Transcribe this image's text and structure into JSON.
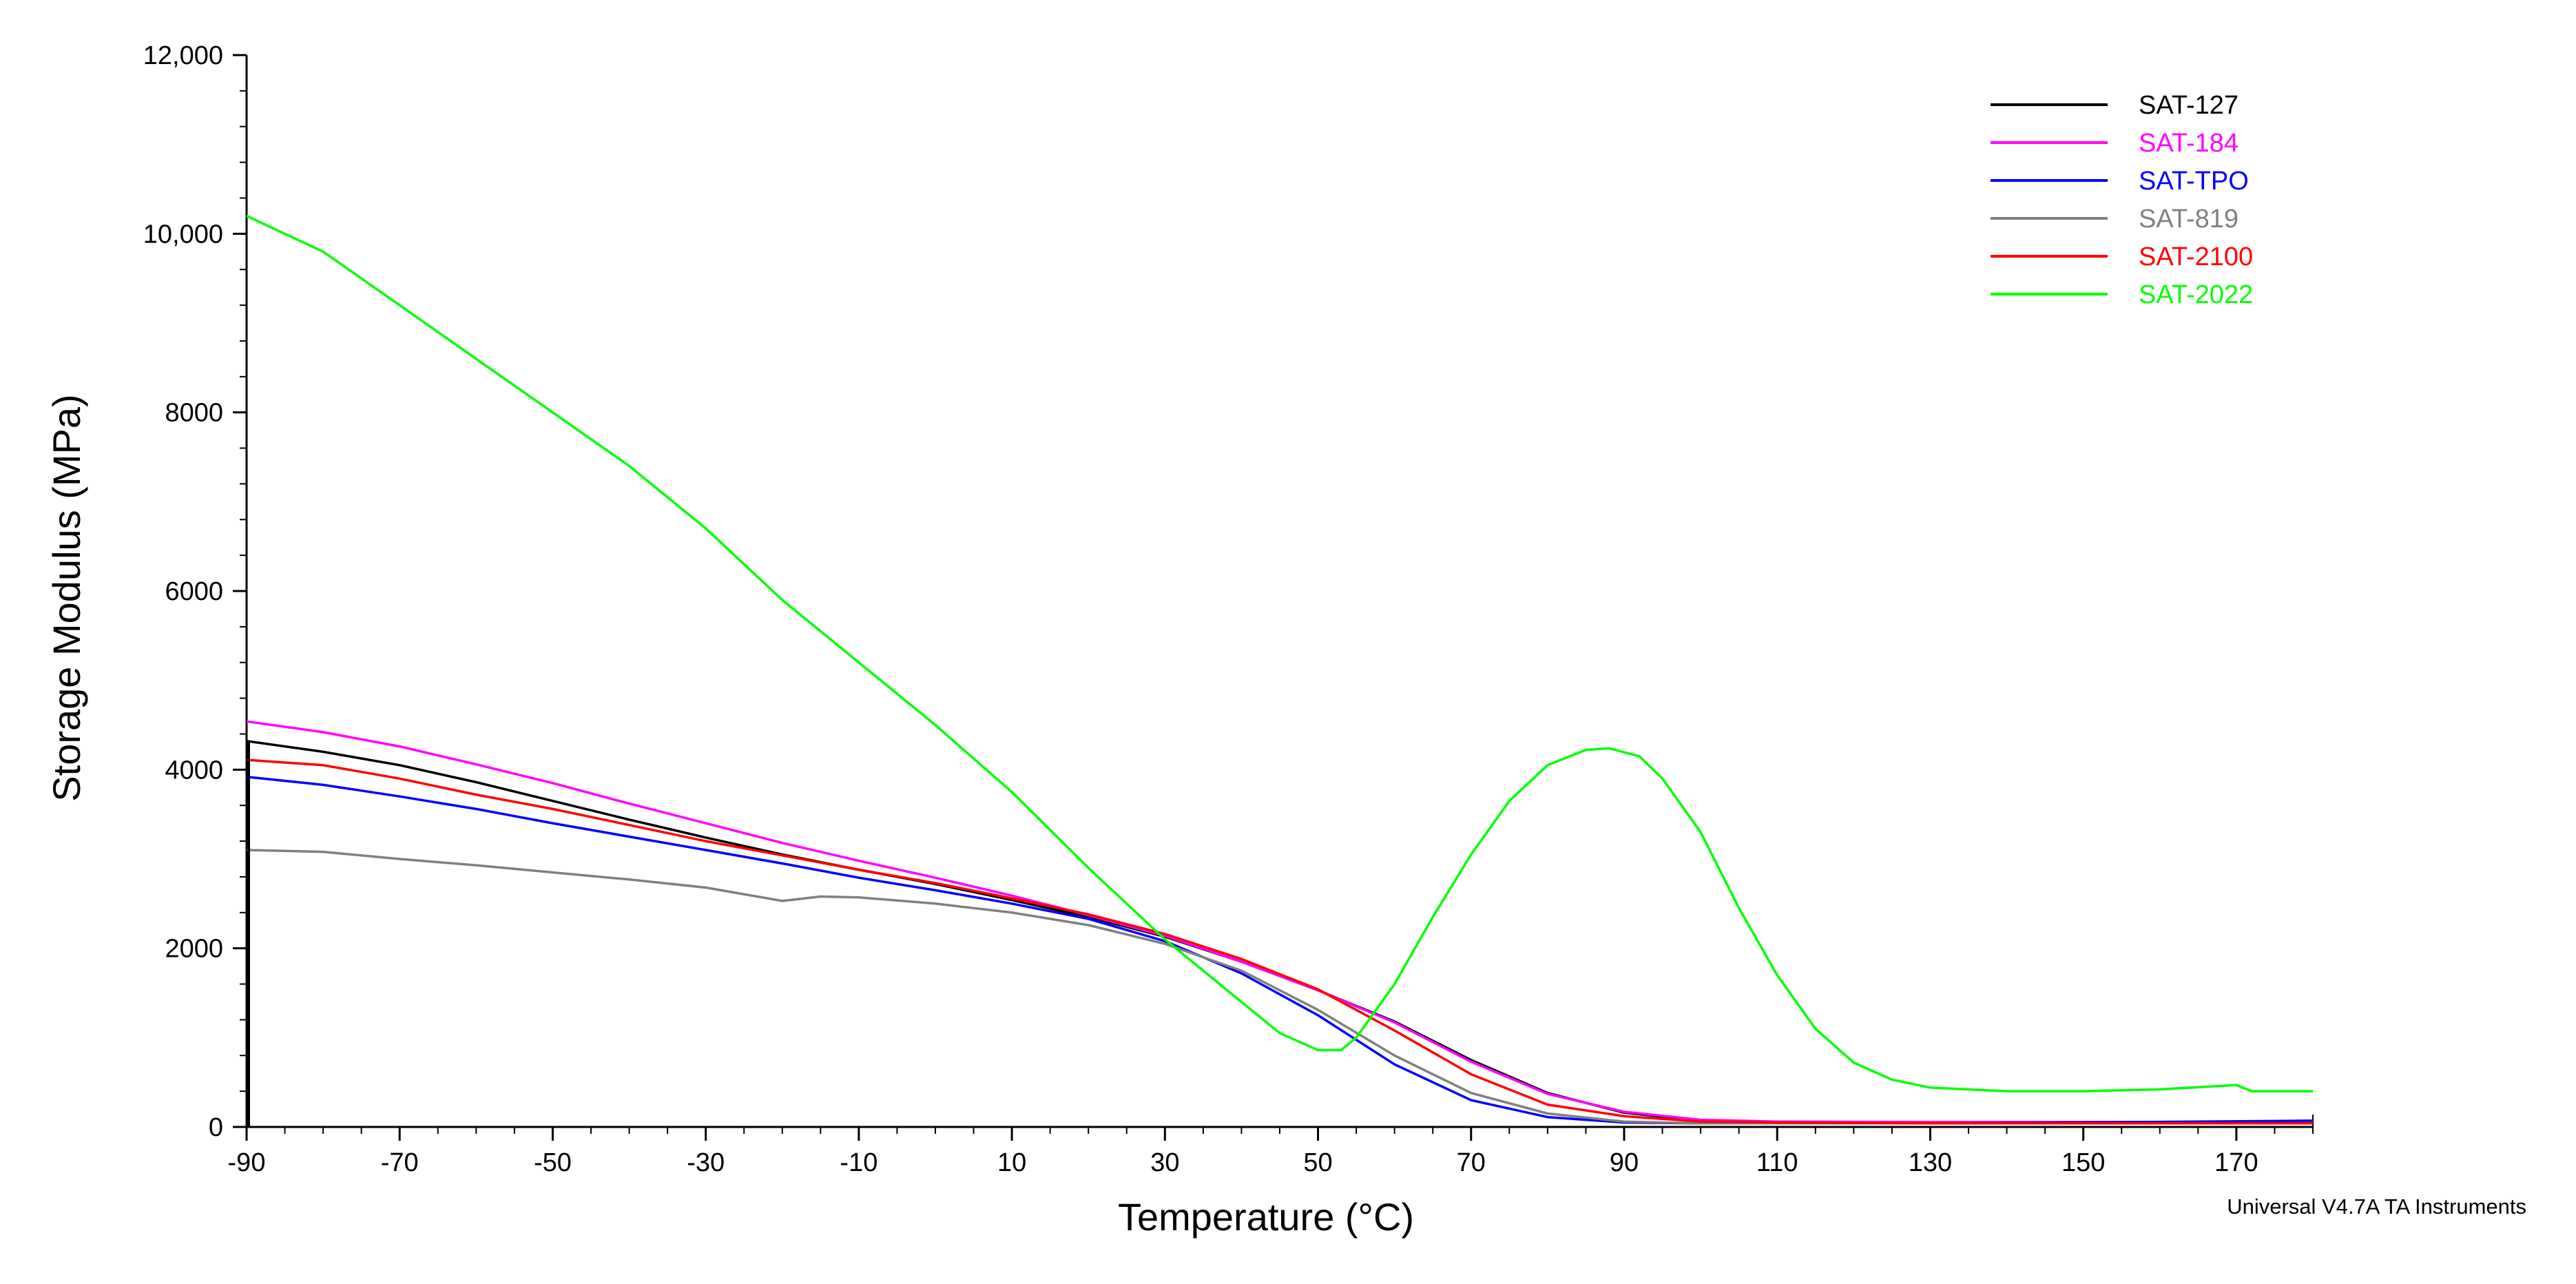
{
  "chart_data": {
    "type": "line",
    "title": "",
    "xlabel": "Temperature (°C)",
    "ylabel": "Storage Modulus (MPa)",
    "xlim": [
      -90,
      180
    ],
    "ylim": [
      0,
      12000
    ],
    "x_ticks": [
      -90,
      -70,
      -50,
      -30,
      -10,
      10,
      30,
      50,
      70,
      90,
      110,
      130,
      150,
      170
    ],
    "x_tick_labels": [
      "-90",
      "-70",
      "-50",
      "-30",
      "-10",
      "10",
      "30",
      "50",
      "70",
      "90",
      "110",
      "130",
      "150",
      "170"
    ],
    "y_ticks": [
      0,
      2000,
      4000,
      6000,
      8000,
      10000,
      12000
    ],
    "y_tick_labels": [
      "0",
      "2000",
      "4000",
      "6000",
      "8000",
      "10,000",
      "12,000"
    ],
    "grid": false,
    "legend_position": "top-right",
    "footer": "Universal V4.7A TA Instruments",
    "series": [
      {
        "name": "SAT-127",
        "color": "#000000",
        "points": [
          [
            -90,
            4320
          ],
          [
            -80,
            4200
          ],
          [
            -70,
            4050
          ],
          [
            -60,
            3860
          ],
          [
            -50,
            3650
          ],
          [
            -40,
            3440
          ],
          [
            -30,
            3240
          ],
          [
            -20,
            3050
          ],
          [
            -10,
            2880
          ],
          [
            0,
            2720
          ],
          [
            10,
            2540
          ],
          [
            20,
            2350
          ],
          [
            30,
            2130
          ],
          [
            40,
            1850
          ],
          [
            50,
            1530
          ],
          [
            60,
            1180
          ],
          [
            70,
            750
          ],
          [
            80,
            380
          ],
          [
            90,
            160
          ],
          [
            100,
            70
          ],
          [
            110,
            50
          ],
          [
            130,
            40
          ],
          [
            150,
            40
          ],
          [
            180,
            40
          ]
        ]
      },
      {
        "name": "SAT-184",
        "color": "#ff00ff",
        "points": [
          [
            -90,
            4540
          ],
          [
            -80,
            4420
          ],
          [
            -70,
            4260
          ],
          [
            -60,
            4060
          ],
          [
            -50,
            3850
          ],
          [
            -40,
            3620
          ],
          [
            -30,
            3400
          ],
          [
            -20,
            3180
          ],
          [
            -10,
            2980
          ],
          [
            0,
            2790
          ],
          [
            10,
            2590
          ],
          [
            20,
            2370
          ],
          [
            30,
            2140
          ],
          [
            40,
            1850
          ],
          [
            50,
            1530
          ],
          [
            60,
            1170
          ],
          [
            70,
            730
          ],
          [
            80,
            370
          ],
          [
            90,
            170
          ],
          [
            100,
            80
          ],
          [
            110,
            60
          ],
          [
            130,
            55
          ],
          [
            150,
            55
          ],
          [
            180,
            60
          ]
        ]
      },
      {
        "name": "SAT-TPO",
        "color": "#0000ff",
        "points": [
          [
            -90,
            3920
          ],
          [
            -80,
            3830
          ],
          [
            -70,
            3700
          ],
          [
            -60,
            3560
          ],
          [
            -50,
            3400
          ],
          [
            -40,
            3250
          ],
          [
            -30,
            3100
          ],
          [
            -20,
            2950
          ],
          [
            -10,
            2790
          ],
          [
            0,
            2650
          ],
          [
            10,
            2500
          ],
          [
            20,
            2330
          ],
          [
            30,
            2080
          ],
          [
            40,
            1720
          ],
          [
            50,
            1250
          ],
          [
            60,
            700
          ],
          [
            70,
            300
          ],
          [
            80,
            110
          ],
          [
            90,
            50
          ],
          [
            100,
            40
          ],
          [
            130,
            40
          ],
          [
            150,
            50
          ],
          [
            180,
            70
          ]
        ]
      },
      {
        "name": "SAT-819",
        "color": "#808080",
        "points": [
          [
            -90,
            3100
          ],
          [
            -80,
            3080
          ],
          [
            -70,
            3000
          ],
          [
            -60,
            2930
          ],
          [
            -50,
            2850
          ],
          [
            -40,
            2770
          ],
          [
            -30,
            2680
          ],
          [
            -20,
            2530
          ],
          [
            -15,
            2580
          ],
          [
            -10,
            2570
          ],
          [
            0,
            2500
          ],
          [
            10,
            2400
          ],
          [
            20,
            2260
          ],
          [
            30,
            2050
          ],
          [
            40,
            1750
          ],
          [
            50,
            1310
          ],
          [
            60,
            800
          ],
          [
            70,
            380
          ],
          [
            80,
            150
          ],
          [
            90,
            60
          ],
          [
            100,
            40
          ],
          [
            130,
            40
          ],
          [
            150,
            40
          ],
          [
            180,
            40
          ]
        ]
      },
      {
        "name": "SAT-2100",
        "color": "#ff0000",
        "points": [
          [
            -90,
            4110
          ],
          [
            -80,
            4050
          ],
          [
            -70,
            3900
          ],
          [
            -60,
            3720
          ],
          [
            -50,
            3560
          ],
          [
            -40,
            3380
          ],
          [
            -30,
            3200
          ],
          [
            -20,
            3040
          ],
          [
            -10,
            2880
          ],
          [
            0,
            2730
          ],
          [
            10,
            2560
          ],
          [
            20,
            2380
          ],
          [
            30,
            2160
          ],
          [
            40,
            1880
          ],
          [
            50,
            1540
          ],
          [
            60,
            1080
          ],
          [
            70,
            590
          ],
          [
            80,
            250
          ],
          [
            90,
            120
          ],
          [
            100,
            60
          ],
          [
            110,
            50
          ],
          [
            130,
            40
          ],
          [
            150,
            40
          ],
          [
            180,
            40
          ]
        ]
      },
      {
        "name": "SAT-2022",
        "color": "#00ff00",
        "points": [
          [
            -90,
            10200
          ],
          [
            -80,
            9800
          ],
          [
            -70,
            9200
          ],
          [
            -60,
            8600
          ],
          [
            -50,
            8000
          ],
          [
            -40,
            7400
          ],
          [
            -30,
            6700
          ],
          [
            -20,
            5900
          ],
          [
            -10,
            5200
          ],
          [
            0,
            4500
          ],
          [
            10,
            3750
          ],
          [
            20,
            2900
          ],
          [
            30,
            2100
          ],
          [
            40,
            1400
          ],
          [
            45,
            1050
          ],
          [
            50,
            860
          ],
          [
            53,
            860
          ],
          [
            55,
            1000
          ],
          [
            60,
            1600
          ],
          [
            65,
            2350
          ],
          [
            70,
            3050
          ],
          [
            75,
            3650
          ],
          [
            80,
            4050
          ],
          [
            85,
            4220
          ],
          [
            88,
            4240
          ],
          [
            92,
            4150
          ],
          [
            95,
            3900
          ],
          [
            100,
            3300
          ],
          [
            105,
            2450
          ],
          [
            110,
            1700
          ],
          [
            115,
            1100
          ],
          [
            120,
            720
          ],
          [
            125,
            530
          ],
          [
            130,
            440
          ],
          [
            140,
            400
          ],
          [
            150,
            400
          ],
          [
            160,
            420
          ],
          [
            170,
            470
          ],
          [
            172,
            400
          ],
          [
            180,
            400
          ]
        ]
      }
    ]
  }
}
